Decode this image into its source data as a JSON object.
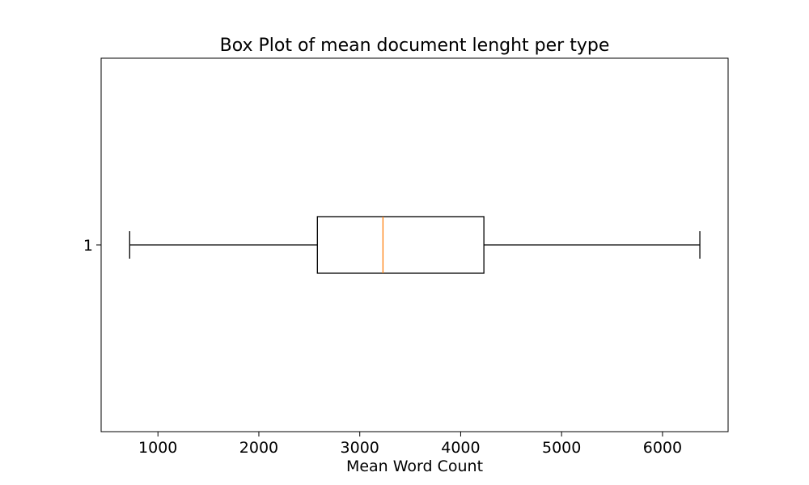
{
  "chart_data": {
    "type": "box",
    "orientation": "horizontal",
    "title": "Box Plot of mean document lenght per type",
    "xlabel": "Mean Word Count",
    "ylabel": "",
    "xlim": [
      437,
      6650
    ],
    "xticks": [
      1000,
      2000,
      3000,
      4000,
      5000,
      6000
    ],
    "categories": [
      "1"
    ],
    "boxes": [
      {
        "label": "1",
        "whisker_low": 720,
        "q1": 2580,
        "median": 3230,
        "q3": 4230,
        "whisker_high": 6370
      }
    ],
    "grid": false,
    "legend": "none",
    "colors": {
      "box": "#000000",
      "median": "#ff7f0e",
      "axes": "#000000"
    }
  }
}
